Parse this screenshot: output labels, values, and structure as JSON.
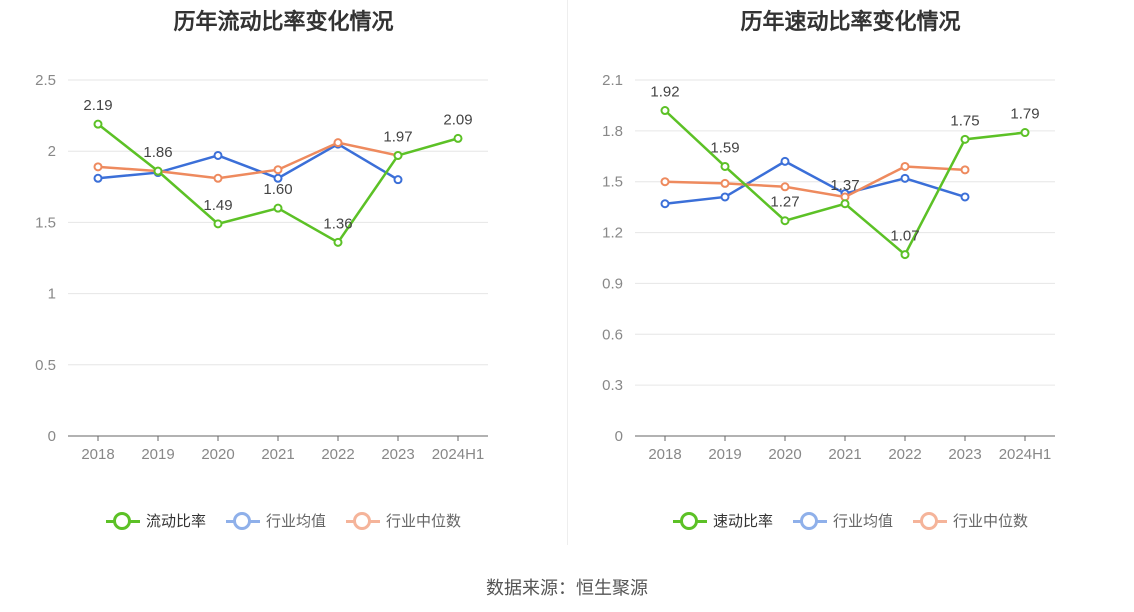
{
  "colors": {
    "green": "#5cc126",
    "blue": "#3b6fd8",
    "orange": "#ee8a5e",
    "legend_blue": "#8fb0ea",
    "legend_orange": "#f5b49a"
  },
  "source_text": "数据来源：恒生聚源",
  "chart_data": [
    {
      "type": "line",
      "title": "历年流动比率变化情况",
      "categories": [
        "2018",
        "2019",
        "2020",
        "2021",
        "2022",
        "2023",
        "2024H1"
      ],
      "ylim": [
        0,
        2.5
      ],
      "yticks": [
        "0",
        "0.5",
        "1",
        "1.5",
        "2",
        "2.5"
      ],
      "grid": true,
      "legend": "bottom",
      "series": [
        {
          "name": "流动比率",
          "color": "#5cc126",
          "values": [
            2.19,
            1.86,
            1.49,
            1.6,
            1.36,
            1.97,
            2.09
          ],
          "labels": [
            "2.19",
            "1.86",
            "1.49",
            "1.60",
            "1.36",
            "1.97",
            "2.09"
          ]
        },
        {
          "name": "行业均值",
          "color": "#3b6fd8",
          "values": [
            1.81,
            1.85,
            1.97,
            1.81,
            2.05,
            1.8,
            null
          ]
        },
        {
          "name": "行业中位数",
          "color": "#ee8a5e",
          "values": [
            1.89,
            1.86,
            1.81,
            1.87,
            2.06,
            1.97,
            null
          ]
        }
      ]
    },
    {
      "type": "line",
      "title": "历年速动比率变化情况",
      "categories": [
        "2018",
        "2019",
        "2020",
        "2021",
        "2022",
        "2023",
        "2024H1"
      ],
      "ylim": [
        0,
        2.1
      ],
      "yticks": [
        "0",
        "0.3",
        "0.6",
        "0.9",
        "1.2",
        "1.5",
        "1.8",
        "2.1"
      ],
      "grid": true,
      "legend": "bottom",
      "series": [
        {
          "name": "速动比率",
          "color": "#5cc126",
          "values": [
            1.92,
            1.59,
            1.27,
            1.37,
            1.07,
            1.75,
            1.79
          ],
          "labels": [
            "1.92",
            "1.59",
            "1.27",
            "1.37",
            "1.07",
            "1.75",
            "1.79"
          ]
        },
        {
          "name": "行业均值",
          "color": "#3b6fd8",
          "values": [
            1.37,
            1.41,
            1.62,
            1.43,
            1.52,
            1.41,
            null
          ]
        },
        {
          "name": "行业中位数",
          "color": "#ee8a5e",
          "values": [
            1.5,
            1.49,
            1.47,
            1.41,
            1.59,
            1.57,
            null
          ]
        }
      ]
    }
  ]
}
